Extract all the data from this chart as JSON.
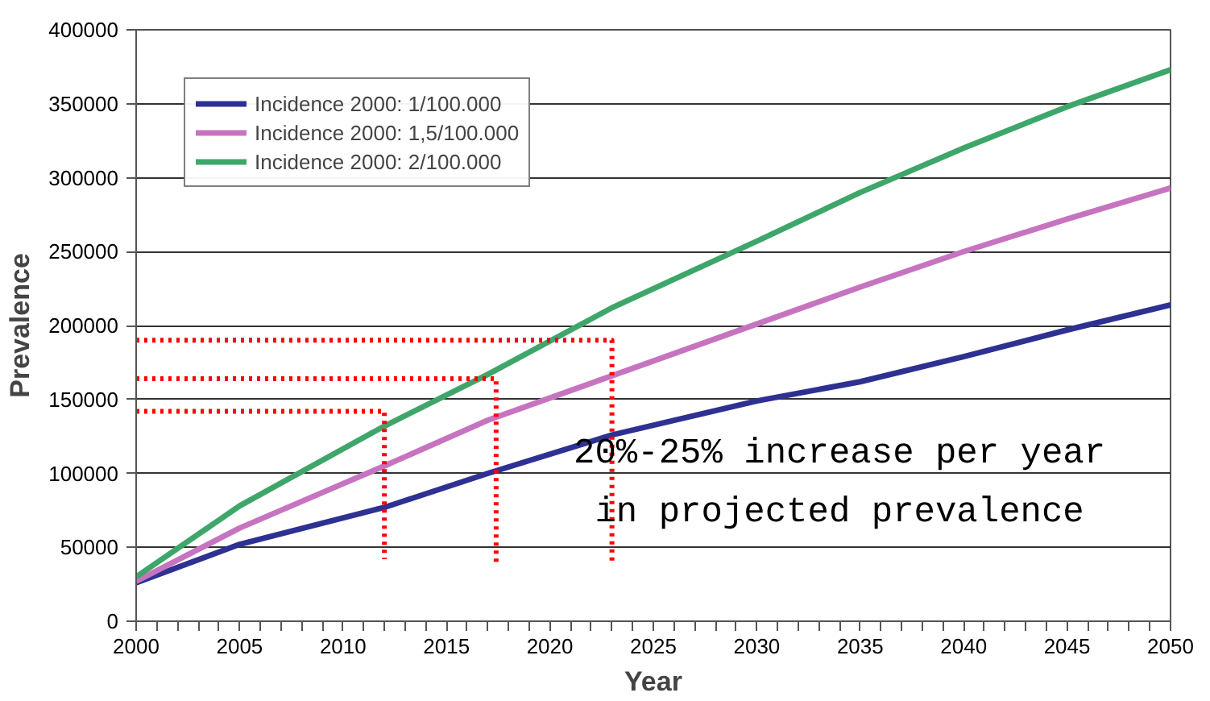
{
  "chart_data": {
    "type": "line",
    "xlabel": "Year",
    "ylabel": "Prevalence",
    "xlim": [
      2000,
      2050
    ],
    "ylim": [
      0,
      400000
    ],
    "xticks": [
      2000,
      {
        "value": 2001,
        "label": null
      },
      {
        "value": 2002,
        "label": null
      },
      {
        "value": 2003,
        "label": null
      },
      {
        "value": 2004,
        "label": null
      },
      2005,
      {
        "value": 2006,
        "label": null
      },
      {
        "value": 2007,
        "label": null
      },
      {
        "value": 2008,
        "label": null
      },
      {
        "value": 2009,
        "label": null
      },
      2010,
      {
        "value": 2011,
        "label": null
      },
      {
        "value": 2012,
        "label": null
      },
      {
        "value": 2013,
        "label": null
      },
      {
        "value": 2014,
        "label": null
      },
      2015,
      {
        "value": 2016,
        "label": null
      },
      {
        "value": 2017,
        "label": null
      },
      {
        "value": 2018,
        "label": null
      },
      {
        "value": 2019,
        "label": null
      },
      2020,
      {
        "value": 2021,
        "label": null
      },
      {
        "value": 2022,
        "label": null
      },
      {
        "value": 2023,
        "label": null
      },
      {
        "value": 2024,
        "label": null
      },
      2025,
      {
        "value": 2026,
        "label": null
      },
      {
        "value": 2027,
        "label": null
      },
      {
        "value": 2028,
        "label": null
      },
      {
        "value": 2029,
        "label": null
      },
      2030,
      {
        "value": 2031,
        "label": null
      },
      {
        "value": 2032,
        "label": null
      },
      {
        "value": 2033,
        "label": null
      },
      {
        "value": 2034,
        "label": null
      },
      2035,
      {
        "value": 2036,
        "label": null
      },
      {
        "value": 2037,
        "label": null
      },
      {
        "value": 2038,
        "label": null
      },
      {
        "value": 2039,
        "label": null
      },
      2040,
      {
        "value": 2041,
        "label": null
      },
      {
        "value": 2042,
        "label": null
      },
      {
        "value": 2043,
        "label": null
      },
      {
        "value": 2044,
        "label": null
      },
      2045,
      {
        "value": 2046,
        "label": null
      },
      {
        "value": 2047,
        "label": null
      },
      {
        "value": 2048,
        "label": null
      },
      {
        "value": 2049,
        "label": null
      },
      2050
    ],
    "yticks": [
      0,
      50000,
      100000,
      150000,
      200000,
      250000,
      300000,
      350000,
      400000
    ],
    "x": [
      2000,
      2005,
      2012,
      2017,
      2023,
      2030,
      2035,
      2040,
      2045,
      2050
    ],
    "series": [
      {
        "name": "Incidence 2000: 1/100.000",
        "color": "#2e3192",
        "values": [
          26000,
          52000,
          77000,
          100000,
          126000,
          149000,
          162000,
          179000,
          197000,
          214000
        ]
      },
      {
        "name": "Incidence 2000: 1,5/100.000",
        "color": "#c774c0",
        "values": [
          27000,
          63000,
          105000,
          136000,
          166000,
          201000,
          226000,
          250000,
          272000,
          293000
        ]
      },
      {
        "name": "Incidence 2000: 2/100.000",
        "color": "#3fa66a",
        "values": [
          30000,
          78000,
          132000,
          167000,
          212000,
          257000,
          290000,
          320000,
          348000,
          373000
        ]
      },
      {
        "type": "line",
        "color": "#ff0000",
        "line_style": "dotted",
        "x": [
          2000,
          2012,
          2012
        ],
        "values": [
          142000,
          142000,
          42000
        ]
      },
      {
        "type": "line",
        "color": "#ff0000",
        "line_style": "dotted",
        "x": [
          2000,
          2017.4,
          2017.4
        ],
        "values": [
          164000,
          164000,
          40000
        ]
      },
      {
        "type": "line",
        "color": "#ff0000",
        "line_style": "dotted",
        "x": [
          2000,
          2023,
          2023
        ],
        "values": [
          190000,
          190000,
          40000
        ]
      }
    ],
    "annotations": [
      "20%-25% increase per year",
      "in projected prevalence"
    ],
    "grid": "y",
    "legend": "top left",
    "line_style": "solid",
    "marker": "none"
  }
}
